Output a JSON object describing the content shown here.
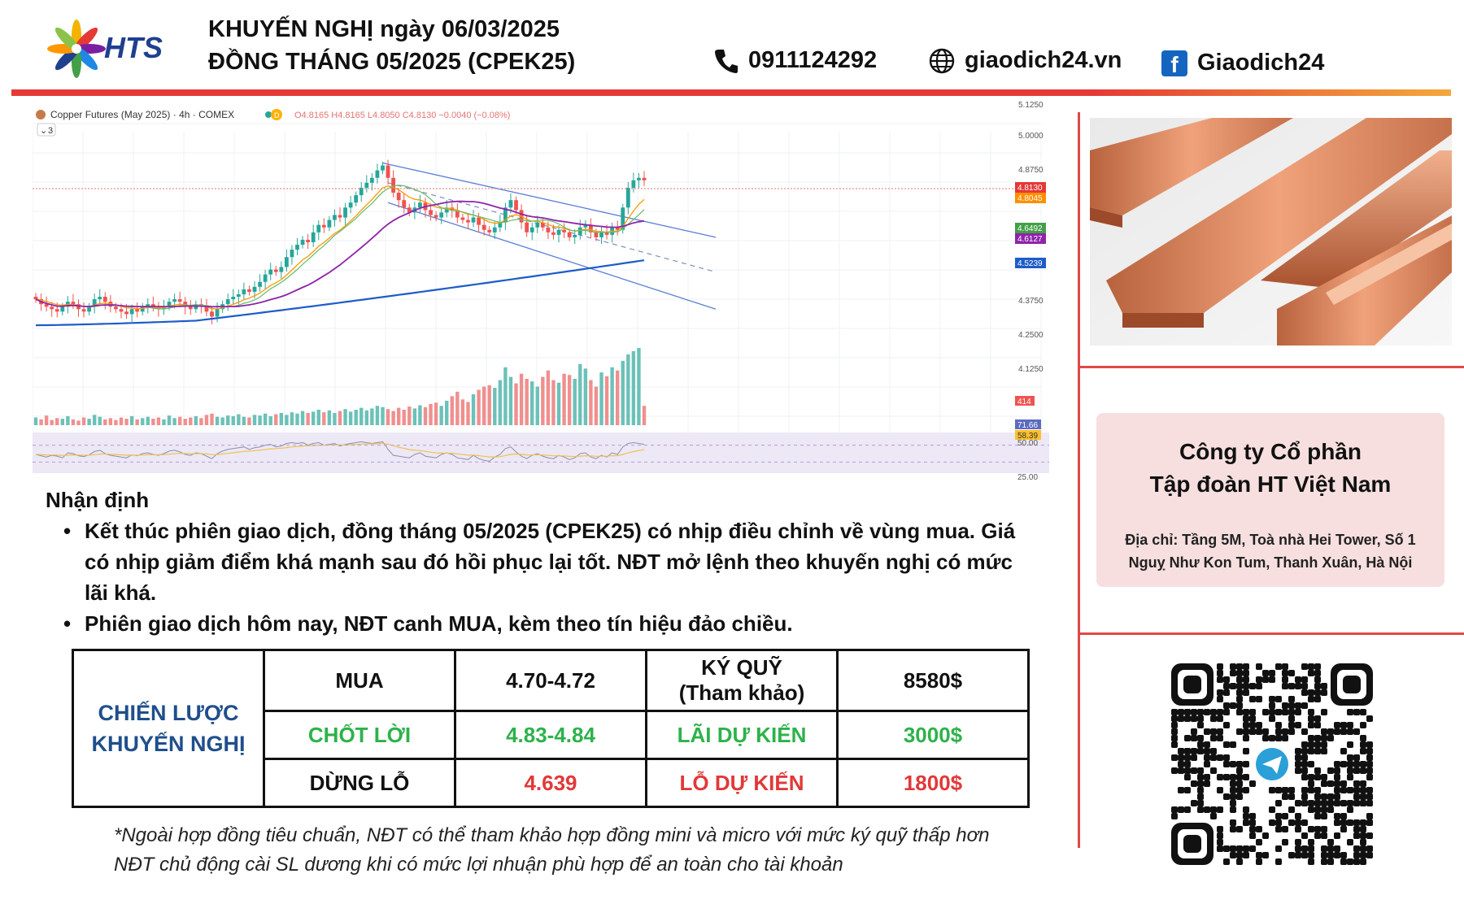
{
  "header": {
    "brand": "HTS",
    "title_line1": "KHUYẾN NGHỊ ngày 06/03/2025",
    "title_line2": "ĐỒNG THÁNG 05/2025 (CPEK25)",
    "phone": "0911124292",
    "website": "giaodich24.vn",
    "facebook": "Giaodich24"
  },
  "colors": {
    "accent_red": "#e53935",
    "brand_blue": "#1f4e8c",
    "profit_green": "#2db24a",
    "loss_red": "#e23838"
  },
  "chart_data": {
    "type": "line",
    "title": "Copper Futures (May 2025) · 4h · COMEX",
    "ohlc_text": "O4.8165 H4.8165 L4.8050 C4.8130 −0.0040 (−0.08%)",
    "indicator_count": "3",
    "y_ticks": [
      "5.1250",
      "5.0000",
      "4.8750",
      "4.3750",
      "4.2500",
      "4.1250"
    ],
    "price_labels": [
      {
        "value": "4.8130",
        "color": "#e53935"
      },
      {
        "value": "4.8045",
        "color": "#ff8f00"
      },
      {
        "value": "4.6492",
        "color": "#43a047"
      },
      {
        "value": "4.6127",
        "color": "#8e24aa"
      },
      {
        "value": "4.5239",
        "color": "#1e5cc8"
      }
    ],
    "volume_label": "414",
    "rsi_labels": [
      "71.66",
      "58.39",
      "50.00",
      "25.00"
    ],
    "close": [
      4.33,
      4.31,
      4.3,
      4.29,
      4.28,
      4.3,
      4.32,
      4.31,
      4.29,
      4.28,
      4.3,
      4.33,
      4.34,
      4.32,
      4.3,
      4.29,
      4.28,
      4.27,
      4.29,
      4.28,
      4.3,
      4.31,
      4.3,
      4.29,
      4.3,
      4.32,
      4.33,
      4.32,
      4.3,
      4.29,
      4.31,
      4.3,
      4.28,
      4.26,
      4.29,
      4.31,
      4.33,
      4.34,
      4.35,
      4.37,
      4.36,
      4.38,
      4.4,
      4.43,
      4.45,
      4.44,
      4.46,
      4.5,
      4.53,
      4.55,
      4.57,
      4.56,
      4.6,
      4.63,
      4.62,
      4.65,
      4.67,
      4.66,
      4.7,
      4.72,
      4.75,
      4.78,
      4.8,
      4.82,
      4.85,
      4.87,
      4.82,
      4.76,
      4.73,
      4.7,
      4.68,
      4.7,
      4.72,
      4.69,
      4.67,
      4.66,
      4.68,
      4.7,
      4.69,
      4.66,
      4.65,
      4.64,
      4.66,
      4.63,
      4.61,
      4.6,
      4.62,
      4.64,
      4.7,
      4.73,
      4.69,
      4.64,
      4.6,
      4.62,
      4.64,
      4.62,
      4.6,
      4.59,
      4.61,
      4.6,
      4.58,
      4.59,
      4.62,
      4.63,
      4.6,
      4.58,
      4.6,
      4.59,
      4.62,
      4.61,
      4.7,
      4.78,
      4.81,
      4.82,
      4.81
    ],
    "volume": [
      12,
      9,
      15,
      8,
      11,
      10,
      14,
      9,
      7,
      12,
      10,
      16,
      13,
      9,
      11,
      8,
      12,
      10,
      14,
      9,
      11,
      13,
      10,
      12,
      9,
      15,
      11,
      13,
      10,
      12,
      14,
      11,
      16,
      18,
      13,
      12,
      15,
      14,
      17,
      13,
      12,
      16,
      15,
      18,
      14,
      17,
      19,
      16,
      20,
      18,
      22,
      19,
      21,
      24,
      20,
      23,
      19,
      22,
      25,
      21,
      24,
      27,
      23,
      26,
      30,
      28,
      25,
      22,
      27,
      24,
      29,
      26,
      31,
      28,
      33,
      35,
      30,
      38,
      45,
      52,
      40,
      36,
      48,
      55,
      60,
      62,
      58,
      70,
      90,
      75,
      65,
      80,
      72,
      68,
      60,
      75,
      85,
      70,
      66,
      80,
      78,
      72,
      95,
      88,
      70,
      60,
      82,
      76,
      90,
      85,
      100,
      110,
      115,
      120,
      30
    ],
    "rsi": [
      48,
      45,
      42,
      46,
      44,
      40,
      52,
      50,
      45,
      43,
      47,
      55,
      58,
      50,
      46,
      44,
      42,
      40,
      47,
      45,
      50,
      52,
      48,
      46,
      50,
      56,
      58,
      54,
      48,
      46,
      52,
      50,
      44,
      38,
      50,
      56,
      60,
      62,
      64,
      66,
      60,
      64,
      66,
      70,
      72,
      66,
      68,
      74,
      76,
      74,
      76,
      70,
      74,
      76,
      70,
      72,
      74,
      68,
      72,
      74,
      76,
      78,
      76,
      74,
      76,
      78,
      60,
      46,
      44,
      42,
      40,
      48,
      52,
      44,
      42,
      40,
      48,
      52,
      48,
      40,
      38,
      36,
      46,
      38,
      34,
      32,
      42,
      48,
      62,
      66,
      54,
      44,
      38,
      46,
      50,
      44,
      40,
      38,
      46,
      42,
      36,
      40,
      50,
      52,
      42,
      38,
      46,
      42,
      52,
      48,
      66,
      74,
      76,
      74,
      72
    ]
  },
  "image_panel": {
    "copper_image": "copper-bars-image"
  },
  "company": {
    "name_line1": "Công ty Cổ phần",
    "name_line2": "Tập đoàn HT Việt Nam",
    "address_line1": "Địa chỉ: Tầng 5M, Toà nhà Hei Tower, Số 1",
    "address_line2": "Nguỵ Như Kon Tum, Thanh Xuân, Hà Nội"
  },
  "qr": {
    "icon": "telegram-icon"
  },
  "analysis": {
    "heading": "Nhận định",
    "bullet1": "Kết thúc phiên giao dịch, đồng tháng 05/2025 (CPEK25) có nhịp điều chỉnh về vùng mua. Giá có nhịp giảm điểm khá mạnh sau đó hồi phục lại tốt. NĐT mở lệnh theo khuyến nghị có mức lãi khá.",
    "bullet2": "Phiên giao dịch hôm nay, NĐT canh MUA, kèm theo tín hiệu đảo chiều."
  },
  "strategy": {
    "label_line1": "CHIẾN LƯỢC",
    "label_line2": "KHUYẾN NGHỊ",
    "buy_label": "MUA",
    "buy_value": "4.70-4.72",
    "margin_label_line1": "KÝ QUỸ",
    "margin_label_line2": "(Tham khảo)",
    "margin_value": "8580$",
    "tp_label": "CHỐT LỜI",
    "tp_value": "4.83-4.84",
    "profit_label": "LÃI DỰ KIẾN",
    "profit_value": "3000$",
    "sl_label": "DỪNG LỖ",
    "sl_value": "4.639",
    "loss_label": "LỖ DỰ KIẾN",
    "loss_value": "1800$"
  },
  "notes": {
    "line1": "*Ngoài hợp đồng tiêu chuẩn, NĐT có thể tham khảo hợp đồng mini và micro với mức ký quỹ thấp hơn",
    "line2": "NĐT chủ động cài SL dương khi có mức lợi nhuận phù hợp để an toàn cho tài khoản"
  }
}
